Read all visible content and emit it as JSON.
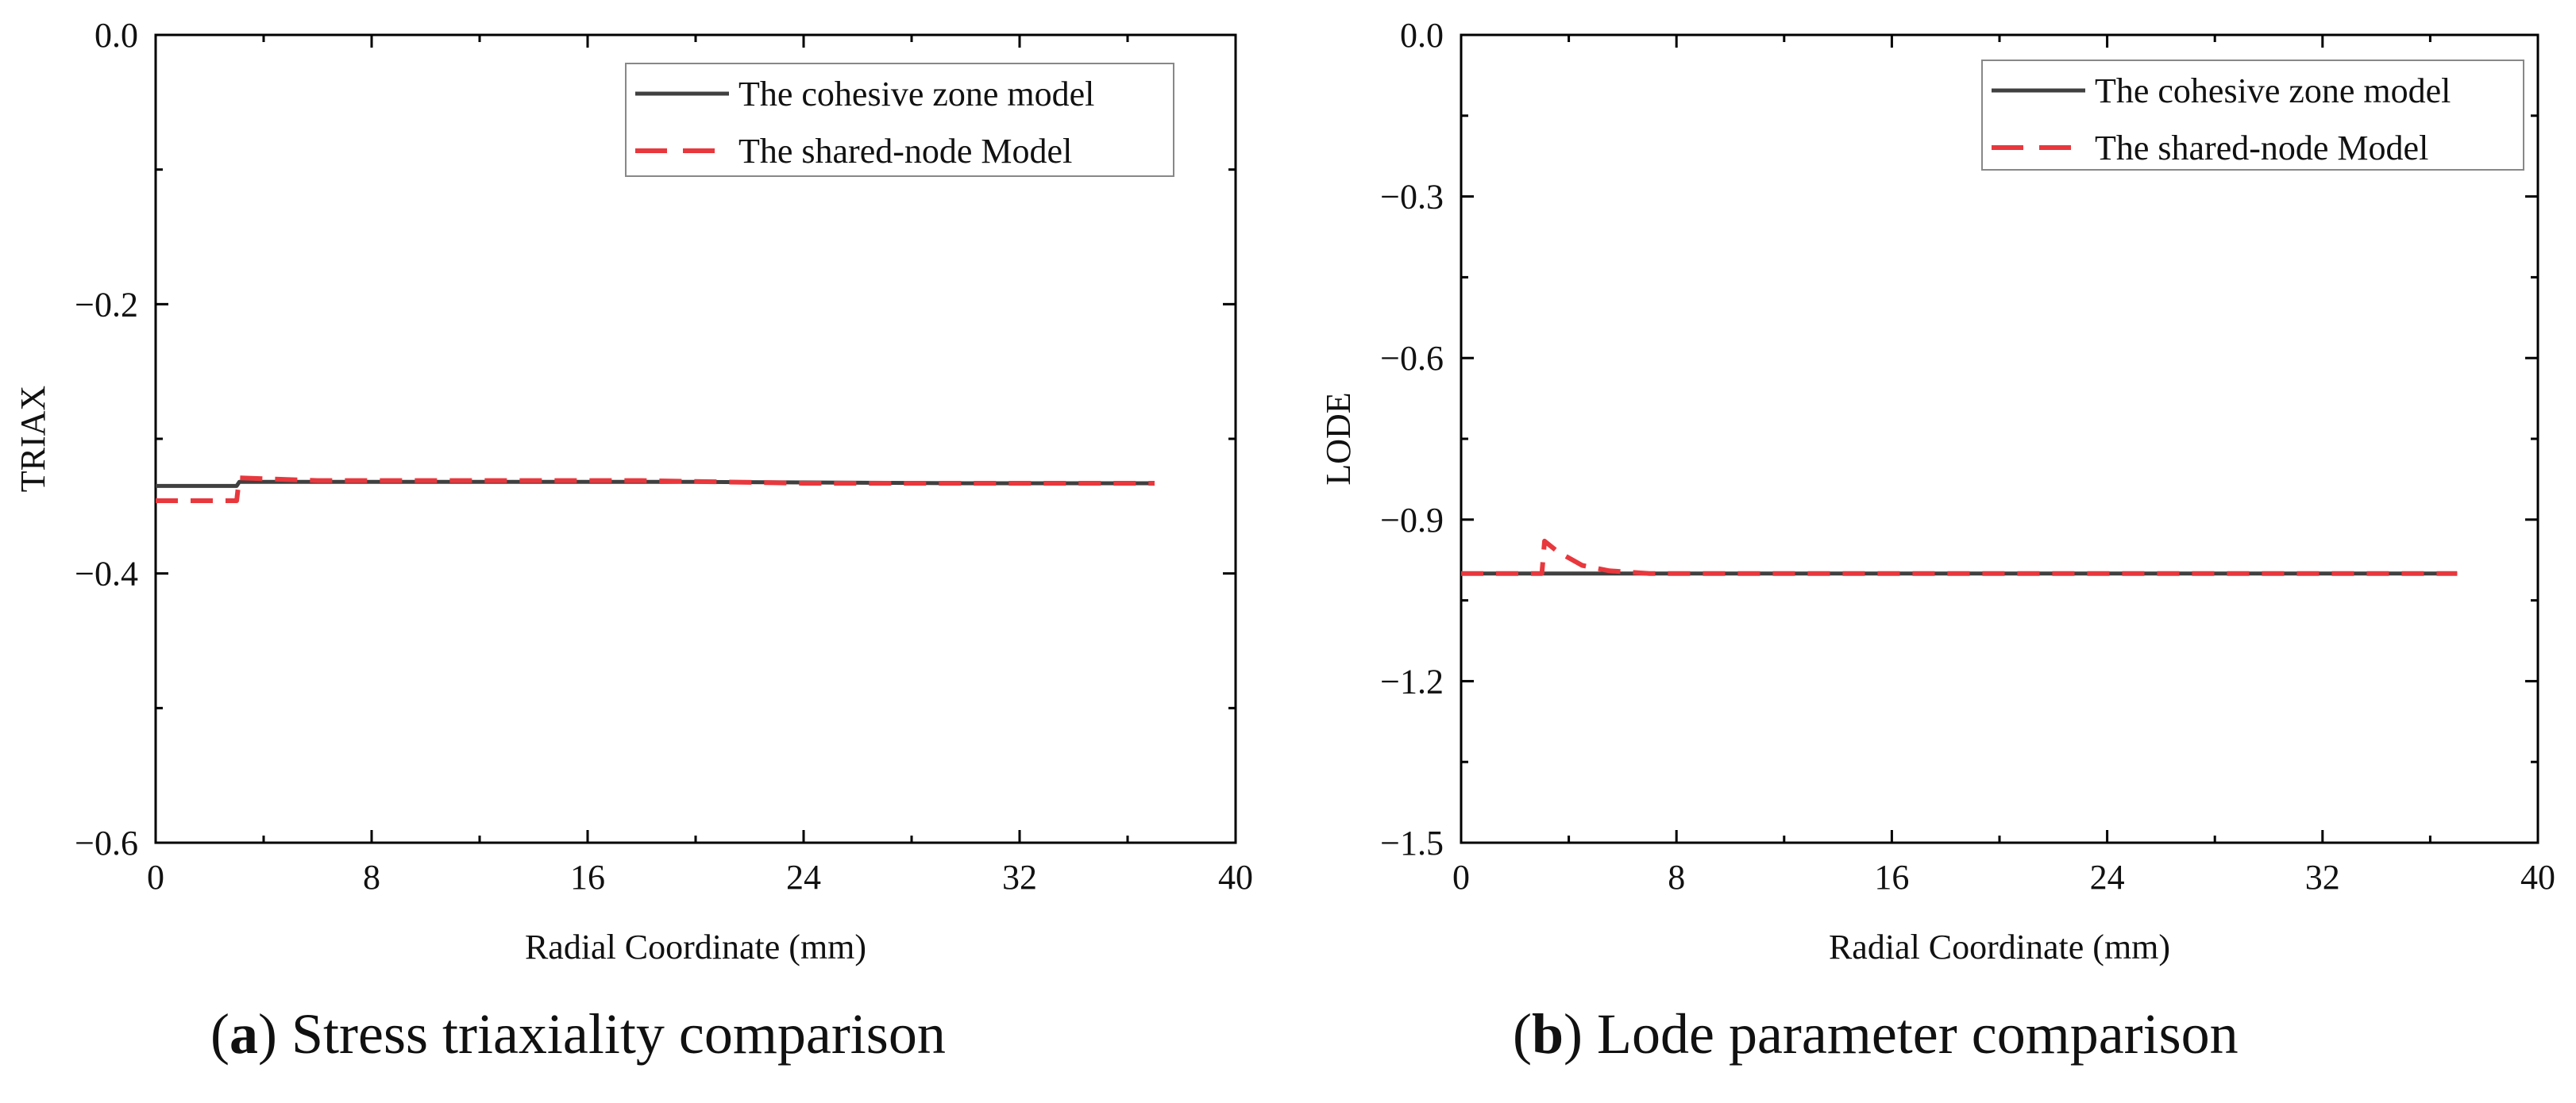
{
  "chart_data": [
    {
      "type": "line",
      "panel_label": "a",
      "caption": "Stress triaxiality comparison",
      "xlabel": "Radial Coordinate (mm)",
      "ylabel": "TRIAX",
      "xlim": [
        0,
        40
      ],
      "ylim": [
        -0.6,
        0.0
      ],
      "xticks": [
        0,
        8,
        16,
        24,
        32,
        40
      ],
      "xtick_labels": [
        "0",
        "8",
        "16",
        "24",
        "32",
        "40"
      ],
      "yticks": [
        0.0,
        -0.2,
        -0.4,
        -0.6
      ],
      "ytick_labels": [
        "0.0",
        "−0.2",
        "−0.4",
        "−0.6"
      ],
      "grid": false,
      "legend_position": "top-right",
      "series": [
        {
          "name": "The cohesive zone model",
          "color": "#404040",
          "style": "solid",
          "x": [
            0,
            3.0,
            3.1,
            10,
            20,
            30,
            37
          ],
          "y": [
            -0.335,
            -0.335,
            -0.332,
            -0.332,
            -0.332,
            -0.333,
            -0.333
          ]
        },
        {
          "name": "The shared-node Model",
          "color": "#e8383d",
          "style": "dashed",
          "x": [
            0,
            3.0,
            3.1,
            6,
            12,
            18,
            24,
            30,
            37
          ],
          "y": [
            -0.346,
            -0.346,
            -0.329,
            -0.331,
            -0.331,
            -0.331,
            -0.333,
            -0.333,
            -0.333
          ]
        }
      ]
    },
    {
      "type": "line",
      "panel_label": "b",
      "caption": "Lode parameter comparison",
      "xlabel": "Radial Coordinate (mm)",
      "ylabel": "LODE",
      "xlim": [
        0,
        40
      ],
      "ylim": [
        -1.5,
        0.0
      ],
      "xticks": [
        0,
        8,
        16,
        24,
        32,
        40
      ],
      "xtick_labels": [
        "0",
        "8",
        "16",
        "24",
        "32",
        "40"
      ],
      "yticks": [
        0.0,
        -0.3,
        -0.6,
        -0.9,
        -1.2,
        -1.5
      ],
      "ytick_labels": [
        "0.0",
        "−0.3",
        "−0.6",
        "−0.9",
        "−1.2",
        "−1.5"
      ],
      "grid": false,
      "legend_position": "top-right",
      "series": [
        {
          "name": "The cohesive zone model",
          "color": "#404040",
          "style": "solid",
          "x": [
            0,
            10,
            20,
            30,
            37
          ],
          "y": [
            -1.0,
            -1.0,
            -1.0,
            -1.0,
            -1.0
          ]
        },
        {
          "name": "The shared-node Model",
          "color": "#e8383d",
          "style": "dashed",
          "x": [
            0,
            3.0,
            3.1,
            3.6,
            4.5,
            5.5,
            7,
            12,
            20,
            30,
            37
          ],
          "y": [
            -1.0,
            -1.0,
            -0.94,
            -0.96,
            -0.985,
            -0.995,
            -1.0,
            -1.0,
            -1.0,
            -1.0,
            -1.0
          ]
        }
      ]
    }
  ]
}
